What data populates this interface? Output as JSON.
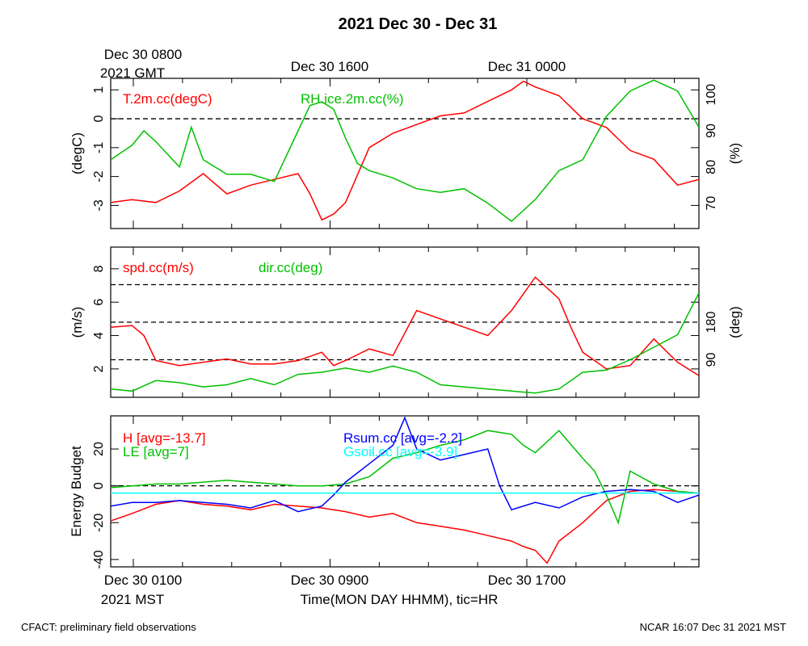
{
  "title": "2021 Dec 30 - Dec 31",
  "footer_left": "CFACT: preliminary field observations",
  "footer_right": "NCAR 16:07 Dec 31 2021 MST",
  "top_axis": {
    "ticks": [
      {
        "hour": 0,
        "line1": "Dec 30 0800",
        "line2": "2021 GMT"
      },
      {
        "hour": 8,
        "line1": "Dec 30 1600",
        "line2": ""
      },
      {
        "hour": 16,
        "line1": "Dec 31 0000",
        "line2": ""
      }
    ]
  },
  "bottom_axis": {
    "ticks": [
      {
        "hour": 0,
        "line1": "Dec 30 0100",
        "line2": "2021 MST"
      },
      {
        "hour": 8,
        "line1": "Dec 30 0900",
        "line2": ""
      },
      {
        "hour": 16,
        "line1": "Dec 30 1700",
        "line2": ""
      }
    ],
    "label": "Time(MON DAY HHMM), tic=HR"
  },
  "chart_data": [
    {
      "type": "line",
      "x_range_hours": [
        -0.9,
        23.9
      ],
      "left_axis": {
        "label": "(degC)",
        "range": [
          -3.8,
          1.4
        ],
        "ticks": [
          -3,
          -2,
          -1,
          0,
          1
        ]
      },
      "right_axis": {
        "label": "(%)",
        "range": [
          63,
          104.5
        ],
        "ticks": [
          70,
          80,
          90,
          100
        ]
      },
      "reference_lines": [
        {
          "axis": "left",
          "value": 0
        }
      ],
      "series": [
        {
          "name": "T.2m.cc(degC)",
          "color": "#ff0000",
          "axis": "left",
          "x": [
            -0.9,
            0,
            1,
            2,
            3,
            4,
            5,
            6,
            7,
            7.5,
            8,
            8.5,
            9,
            10,
            11,
            12,
            13,
            14,
            15,
            16,
            16.5,
            17,
            18,
            19,
            20,
            21,
            22,
            23,
            23.9
          ],
          "y": [
            -2.9,
            -2.8,
            -2.9,
            -2.5,
            -1.9,
            -2.6,
            -2.3,
            -2.1,
            -1.9,
            -2.6,
            -3.5,
            -3.3,
            -2.9,
            -1.0,
            -0.5,
            -0.2,
            0.1,
            0.2,
            0.6,
            1.0,
            1.3,
            1.1,
            0.8,
            0.0,
            -0.3,
            -1.1,
            -1.4,
            -2.3,
            -2.1
          ]
        },
        {
          "name": "RH.ice.2m.cc(%)",
          "color": "#00c000",
          "axis": "right",
          "x": [
            -0.9,
            0,
            0.5,
            1,
            2,
            2.5,
            3,
            4,
            5,
            6,
            7,
            7.5,
            8,
            8.5,
            9,
            9.5,
            10,
            11,
            12,
            13,
            14,
            15,
            16,
            17,
            18,
            19,
            20,
            21,
            22,
            23,
            23.9
          ],
          "y": [
            82,
            86,
            90,
            87,
            80,
            91,
            82,
            78,
            78,
            76,
            90,
            97,
            98,
            96,
            88,
            81,
            79,
            77,
            74,
            73,
            74,
            70,
            65,
            71,
            79,
            82,
            94,
            101,
            104,
            101,
            91
          ]
        }
      ]
    },
    {
      "type": "line",
      "x_range_hours": [
        -0.9,
        23.9
      ],
      "left_axis": {
        "label": "(m/s)",
        "range": [
          0.3,
          9.3
        ],
        "ticks": [
          2,
          4,
          6,
          8
        ]
      },
      "right_axis": {
        "label": "(deg)",
        "range": [
          0,
          360
        ],
        "ticks": [
          90,
          180
        ]
      },
      "reference_lines": [
        {
          "axis": "right",
          "value": 90
        },
        {
          "axis": "right",
          "value": 180
        },
        {
          "axis": "right",
          "value": 270
        }
      ],
      "series": [
        {
          "name": "spd.cc(m/s)",
          "color": "#ff0000",
          "axis": "left",
          "x": [
            -0.9,
            0,
            0.5,
            1,
            2,
            3,
            4,
            5,
            6,
            7,
            8,
            8.5,
            9,
            10,
            11,
            12,
            13,
            14,
            15,
            16,
            16.5,
            17,
            18,
            18.5,
            19,
            20,
            21,
            22,
            23,
            23.9
          ],
          "y": [
            4.5,
            4.6,
            4.0,
            2.5,
            2.2,
            2.4,
            2.6,
            2.3,
            2.3,
            2.5,
            3.0,
            2.2,
            2.5,
            3.2,
            2.8,
            5.5,
            5.0,
            4.5,
            4.0,
            5.5,
            6.5,
            7.5,
            6.2,
            4.5,
            3.0,
            2.0,
            2.2,
            3.8,
            2.4,
            1.6
          ]
        },
        {
          "name": "dir.cc(deg)",
          "color": "#00c000",
          "axis": "right",
          "x": [
            -0.9,
            0,
            1,
            2,
            3,
            4,
            5,
            6,
            7,
            8,
            9,
            10,
            11,
            12,
            13,
            14,
            15,
            16,
            17,
            18,
            19,
            20,
            21,
            22,
            23,
            23.9
          ],
          "y": [
            20,
            15,
            40,
            35,
            25,
            30,
            45,
            30,
            55,
            60,
            70,
            60,
            75,
            60,
            30,
            25,
            20,
            15,
            10,
            20,
            60,
            65,
            90,
            120,
            150,
            250
          ]
        }
      ]
    },
    {
      "type": "line",
      "x_range_hours": [
        -0.9,
        23.9
      ],
      "left_axis": {
        "label": "Energy Budget",
        "range": [
          -44,
          38
        ],
        "ticks": [
          -40,
          -20,
          0,
          20
        ]
      },
      "reference_lines": [
        {
          "axis": "left",
          "value": 0
        }
      ],
      "series": [
        {
          "name": "H [avg=-13.7]",
          "color": "#ff0000",
          "x": [
            -0.9,
            0,
            1,
            2,
            3,
            4,
            5,
            6,
            7,
            8,
            9,
            10,
            11,
            12,
            13,
            14,
            15,
            16,
            16.5,
            17,
            17.5,
            18,
            19,
            20,
            21,
            22,
            23,
            23.9
          ],
          "y": [
            -19,
            -15,
            -10,
            -8,
            -10,
            -11,
            -13,
            -10,
            -11,
            -12,
            -14,
            -17,
            -15,
            -20,
            -22,
            -24,
            -27,
            -30,
            -33,
            -35,
            -42,
            -30,
            -20,
            -8,
            -3,
            -2,
            -3,
            -4
          ]
        },
        {
          "name": "LE [avg=7]",
          "color": "#00c000",
          "x": [
            -0.9,
            0,
            1,
            2,
            3,
            4,
            5,
            6,
            7,
            8,
            9,
            10,
            11,
            12,
            13,
            14,
            15,
            16,
            16.5,
            17,
            18,
            19,
            19.5,
            20,
            20.5,
            21,
            22,
            23,
            23.9
          ],
          "y": [
            -1,
            0,
            1,
            1,
            2,
            3,
            2,
            1,
            0,
            0,
            1,
            5,
            15,
            18,
            22,
            25,
            30,
            28,
            22,
            18,
            30,
            15,
            8,
            -5,
            -20,
            8,
            1,
            -3,
            -4
          ]
        },
        {
          "name": "Rsum.cc [avg=-2.2]",
          "color": "#0000ff",
          "x": [
            -0.9,
            0,
            1,
            2,
            3,
            4,
            5,
            6,
            7,
            8,
            8.5,
            9,
            10,
            11,
            11.5,
            12,
            13,
            14,
            15,
            15.5,
            16,
            17,
            18,
            19,
            20,
            21,
            22,
            23,
            23.9
          ],
          "y": [
            -11,
            -9,
            -9,
            -8,
            -9,
            -10,
            -12,
            -8,
            -14,
            -11,
            -5,
            2,
            12,
            22,
            37,
            20,
            14,
            17,
            20,
            0,
            -13,
            -9,
            -12,
            -6,
            -3,
            -2,
            -3,
            -9,
            -5
          ]
        },
        {
          "name": "Gsoil.cc [avg=-3.9]",
          "color": "#00ffff",
          "x": [
            -0.9,
            23.9
          ],
          "y": [
            -3.9,
            -3.9
          ]
        }
      ]
    }
  ]
}
